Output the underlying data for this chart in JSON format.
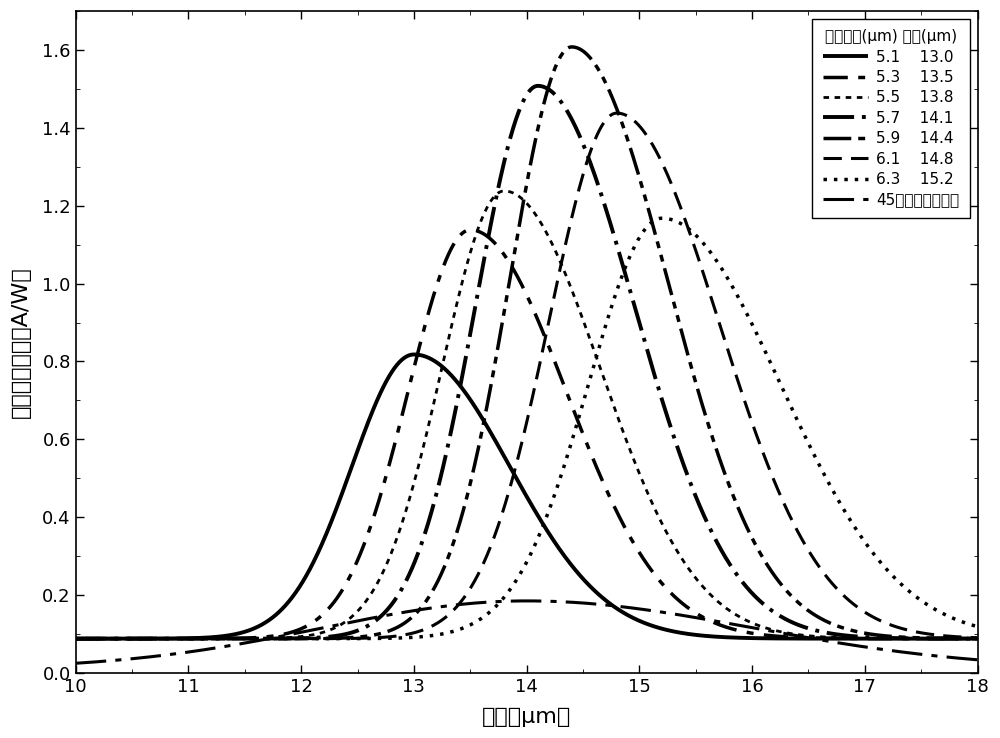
{
  "xlabel": "波长（μm）",
  "ylabel": "光电流响应率（A/W）",
  "xlim": [
    10,
    18
  ],
  "ylim": [
    0.0,
    1.7
  ],
  "xticks": [
    10,
    11,
    12,
    13,
    14,
    15,
    16,
    17,
    18
  ],
  "yticks": [
    0.0,
    0.2,
    0.4,
    0.6,
    0.8,
    1.0,
    1.2,
    1.4,
    1.6
  ],
  "legend_title": "金属线宽(μm) 峰位(μm)",
  "series": [
    {
      "label": "5.1    13.0",
      "ls_key": "solid",
      "lw": 2.8,
      "peak": 13.0,
      "amp": 0.73,
      "sl": 0.55,
      "sr": 0.85,
      "bg": 0.088
    },
    {
      "label": "5.3    13.5",
      "ls_key": "dash_dot",
      "lw": 2.5,
      "peak": 13.5,
      "amp": 1.05,
      "sl": 0.55,
      "sr": 0.85,
      "bg": 0.088
    },
    {
      "label": "5.5    13.8",
      "ls_key": "dot_dot",
      "lw": 2.0,
      "peak": 13.8,
      "amp": 1.15,
      "sl": 0.55,
      "sr": 0.85,
      "bg": 0.088
    },
    {
      "label": "5.7    14.1",
      "ls_key": "dash_dot2",
      "lw": 2.8,
      "peak": 14.1,
      "amp": 1.42,
      "sl": 0.55,
      "sr": 0.85,
      "bg": 0.088
    },
    {
      "label": "5.9    14.4",
      "ls_key": "dash_dot_dot",
      "lw": 2.5,
      "peak": 14.4,
      "amp": 1.52,
      "sl": 0.55,
      "sr": 0.85,
      "bg": 0.088
    },
    {
      "label": "6.1    14.8",
      "ls_key": "long_dash",
      "lw": 2.2,
      "peak": 14.8,
      "amp": 1.35,
      "sl": 0.6,
      "sr": 0.9,
      "bg": 0.088
    },
    {
      "label": "6.3    15.2",
      "ls_key": "dotted",
      "lw": 2.5,
      "peak": 15.2,
      "amp": 1.08,
      "sl": 0.65,
      "sr": 1.05,
      "bg": 0.088
    },
    {
      "label": "45度磨角标准样品",
      "ls_key": "ref",
      "lw": 2.2,
      "peak": 14.0,
      "amp": 0.175,
      "sl": 1.8,
      "sr": 2.0,
      "bg": 0.01,
      "is_reference": true
    }
  ],
  "figsize": [
    10.0,
    7.38
  ],
  "dpi": 100
}
